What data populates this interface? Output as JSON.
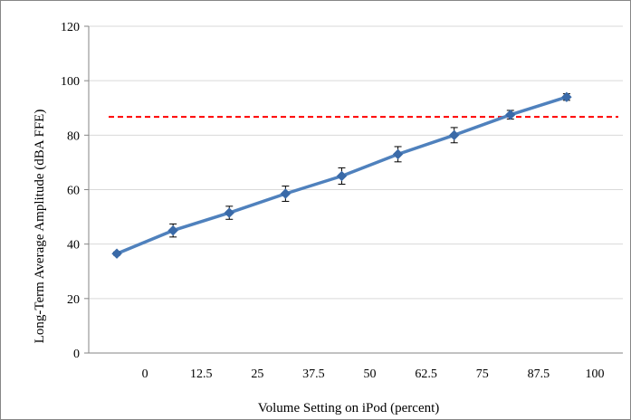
{
  "chart_data": {
    "type": "line",
    "categories": [
      "0",
      "12.5",
      "25",
      "37.5",
      "50",
      "62.5",
      "75",
      "87.5",
      "100"
    ],
    "values": [
      36.5,
      45,
      51.5,
      58.5,
      65,
      73,
      80,
      87.5,
      94
    ],
    "errors": [
      0.6,
      2.4,
      2.4,
      2.8,
      3.0,
      2.8,
      2.8,
      1.6,
      1.2
    ],
    "reference_line": 86.7,
    "xlabel": "Volume  Setting  on iPod (percent)",
    "ylabel": "Long-Term  Average  Amplitude  (dBA FFE)",
    "ylim": [
      0,
      120
    ],
    "yticks": [
      0,
      20,
      40,
      60,
      80,
      100,
      120
    ],
    "grid": "horizontal",
    "colors": {
      "series": "#4f81bd",
      "marker": "#3a6aa8",
      "reference": "#ff0000",
      "grid": "#d9d9d9",
      "axis": "#868686"
    }
  }
}
